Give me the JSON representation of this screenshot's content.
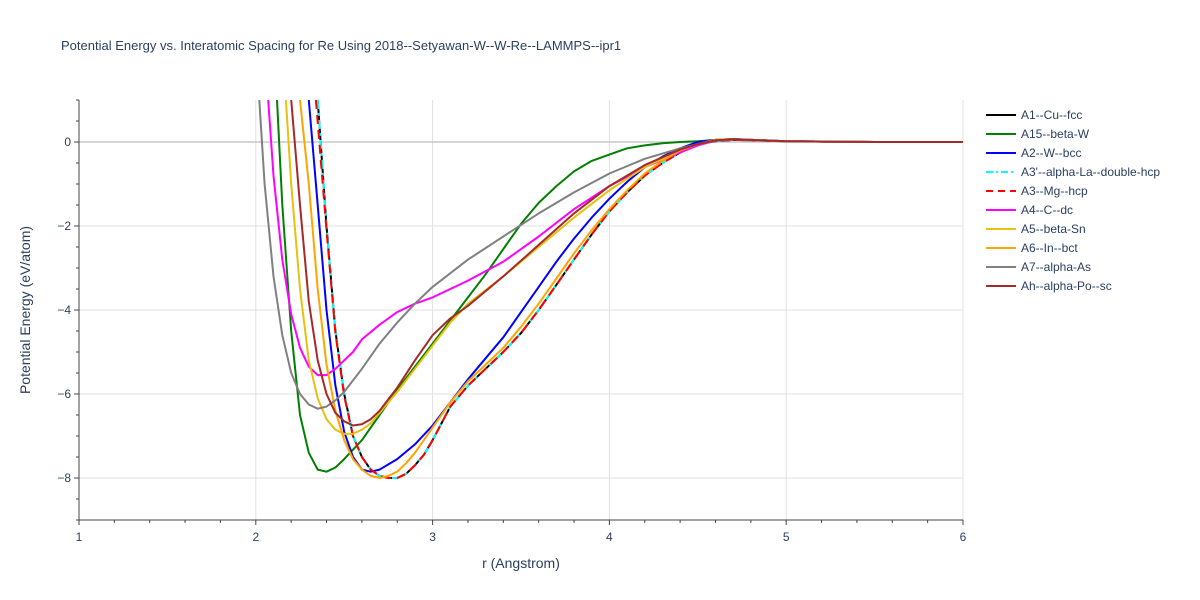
{
  "chart_data": {
    "type": "line",
    "title": "Potential Energy vs. Interatomic Spacing for Re Using 2018--Setyawan-W--W-Re--LAMMPS--ipr1",
    "xlabel": "r (Angstrom)",
    "ylabel": "Potential Energy (eV/atom)",
    "xlim": [
      1,
      6
    ],
    "ylim": [
      -9,
      1
    ],
    "xticks": [
      1,
      2,
      3,
      4,
      5,
      6
    ],
    "yticks": [
      0,
      -2,
      -4,
      -6,
      -8
    ],
    "ytick_labels": [
      "0",
      "−2",
      "−4",
      "−6",
      "−8"
    ],
    "grid": true,
    "legend_position": "right",
    "series": [
      {
        "name": "A1--Cu--fcc",
        "color": "#000000",
        "dash": "solid",
        "x": [
          2.35,
          2.4,
          2.45,
          2.5,
          2.55,
          2.6,
          2.65,
          2.7,
          2.75,
          2.8,
          2.85,
          2.9,
          2.95,
          3.0,
          3.1,
          3.2,
          3.3,
          3.4,
          3.5,
          3.6,
          3.7,
          3.8,
          3.9,
          4.0,
          4.1,
          4.2,
          4.3,
          4.4,
          4.5,
          4.6,
          4.7,
          4.8,
          5.0,
          5.5,
          6.0
        ],
        "y": [
          1.0,
          -2.0,
          -4.5,
          -6.0,
          -7.0,
          -7.5,
          -7.8,
          -7.95,
          -8.0,
          -8.0,
          -7.9,
          -7.7,
          -7.45,
          -7.1,
          -6.3,
          -5.8,
          -5.4,
          -5.0,
          -4.55,
          -4.0,
          -3.4,
          -2.8,
          -2.2,
          -1.65,
          -1.2,
          -0.8,
          -0.5,
          -0.25,
          -0.05,
          0.02,
          0.05,
          0.04,
          0.02,
          0.0,
          0.0
        ]
      },
      {
        "name": "A15--beta-W",
        "color": "#008000",
        "dash": "solid",
        "x": [
          2.12,
          2.15,
          2.2,
          2.25,
          2.3,
          2.35,
          2.4,
          2.45,
          2.5,
          2.6,
          2.7,
          2.8,
          2.9,
          3.0,
          3.1,
          3.2,
          3.3,
          3.4,
          3.5,
          3.6,
          3.7,
          3.8,
          3.9,
          4.0,
          4.1,
          4.2,
          4.3,
          4.4,
          4.5,
          4.6,
          4.7,
          4.8,
          5.0,
          5.5,
          6.0
        ],
        "y": [
          1.0,
          -1.5,
          -4.5,
          -6.5,
          -7.4,
          -7.8,
          -7.85,
          -7.75,
          -7.55,
          -7.1,
          -6.5,
          -5.9,
          -5.35,
          -4.8,
          -4.25,
          -3.7,
          -3.15,
          -2.55,
          -1.95,
          -1.45,
          -1.05,
          -0.7,
          -0.45,
          -0.3,
          -0.15,
          -0.08,
          -0.03,
          0.0,
          0.02,
          0.05,
          0.07,
          0.05,
          0.02,
          0.0,
          0.0
        ]
      },
      {
        "name": "A2--W--bcc",
        "color": "#0000ff",
        "dash": "solid",
        "x": [
          2.3,
          2.35,
          2.4,
          2.45,
          2.5,
          2.55,
          2.6,
          2.65,
          2.7,
          2.8,
          2.9,
          3.0,
          3.1,
          3.2,
          3.3,
          3.4,
          3.5,
          3.6,
          3.7,
          3.8,
          3.9,
          4.0,
          4.1,
          4.2,
          4.3,
          4.4,
          4.5,
          4.6,
          4.7,
          4.8,
          5.0,
          5.5,
          6.0
        ],
        "y": [
          1.0,
          -1.5,
          -4.0,
          -5.8,
          -6.9,
          -7.5,
          -7.8,
          -7.85,
          -7.8,
          -7.55,
          -7.2,
          -6.75,
          -6.2,
          -5.65,
          -5.15,
          -4.65,
          -4.05,
          -3.45,
          -2.85,
          -2.3,
          -1.8,
          -1.35,
          -0.95,
          -0.6,
          -0.35,
          -0.15,
          0.0,
          0.05,
          0.07,
          0.05,
          0.02,
          0.0,
          0.0
        ]
      },
      {
        "name": "A3'--alpha-La--double-hcp",
        "color": "#00ffff",
        "dash": "dashdot",
        "x": [
          2.35,
          2.4,
          2.45,
          2.5,
          2.55,
          2.6,
          2.65,
          2.7,
          2.75,
          2.8,
          2.85,
          2.9,
          2.95,
          3.0,
          3.1,
          3.2,
          3.3,
          3.4,
          3.5,
          3.6,
          3.7,
          3.8,
          3.9,
          4.0,
          4.1,
          4.2,
          4.3,
          4.4,
          4.5,
          4.6,
          4.7,
          4.8,
          5.0,
          5.5,
          6.0
        ],
        "y": [
          1.0,
          -2.0,
          -4.5,
          -6.0,
          -7.0,
          -7.5,
          -7.8,
          -7.95,
          -8.0,
          -8.0,
          -7.9,
          -7.7,
          -7.45,
          -7.1,
          -6.3,
          -5.8,
          -5.4,
          -5.0,
          -4.55,
          -4.0,
          -3.4,
          -2.8,
          -2.2,
          -1.65,
          -1.2,
          -0.8,
          -0.5,
          -0.25,
          -0.05,
          0.02,
          0.05,
          0.04,
          0.02,
          0.0,
          0.0
        ]
      },
      {
        "name": "A3--Mg--hcp",
        "color": "#ff0000",
        "dash": "dash",
        "x": [
          2.34,
          2.4,
          2.45,
          2.5,
          2.55,
          2.6,
          2.65,
          2.7,
          2.75,
          2.8,
          2.85,
          2.9,
          2.95,
          3.0,
          3.1,
          3.2,
          3.3,
          3.4,
          3.5,
          3.6,
          3.7,
          3.8,
          3.9,
          4.0,
          4.1,
          4.2,
          4.3,
          4.4,
          4.5,
          4.6,
          4.7,
          4.8,
          5.0,
          5.5,
          6.0
        ],
        "y": [
          1.0,
          -2.1,
          -4.55,
          -6.05,
          -7.0,
          -7.5,
          -7.8,
          -7.95,
          -8.0,
          -8.0,
          -7.9,
          -7.7,
          -7.45,
          -7.1,
          -6.3,
          -5.8,
          -5.4,
          -5.0,
          -4.55,
          -4.0,
          -3.4,
          -2.8,
          -2.2,
          -1.65,
          -1.2,
          -0.8,
          -0.5,
          -0.25,
          -0.05,
          0.02,
          0.05,
          0.04,
          0.02,
          0.0,
          0.0
        ]
      },
      {
        "name": "A4--C--dc",
        "color": "#ff00ff",
        "dash": "solid",
        "x": [
          2.07,
          2.1,
          2.15,
          2.2,
          2.25,
          2.3,
          2.35,
          2.4,
          2.45,
          2.5,
          2.55,
          2.6,
          2.7,
          2.8,
          2.9,
          3.0,
          3.2,
          3.4,
          3.6,
          3.8,
          4.0,
          4.2,
          4.4,
          4.5,
          4.6,
          4.7,
          4.8,
          5.0,
          5.5,
          6.0
        ],
        "y": [
          1.0,
          -0.8,
          -2.8,
          -4.1,
          -4.9,
          -5.35,
          -5.55,
          -5.55,
          -5.4,
          -5.2,
          -5.0,
          -4.7,
          -4.35,
          -4.05,
          -3.85,
          -3.7,
          -3.3,
          -2.85,
          -2.25,
          -1.6,
          -1.05,
          -0.6,
          -0.25,
          -0.08,
          0.03,
          0.07,
          0.05,
          0.02,
          0.0,
          0.0
        ]
      },
      {
        "name": "A5--beta-Sn",
        "color": "#e6c10f",
        "dash": "solid",
        "x": [
          2.17,
          2.2,
          2.25,
          2.3,
          2.35,
          2.4,
          2.45,
          2.5,
          2.55,
          2.6,
          2.65,
          2.7,
          2.8,
          2.9,
          3.0,
          3.1,
          3.2,
          3.4,
          3.6,
          3.8,
          4.0,
          4.2,
          4.4,
          4.5,
          4.6,
          4.7,
          4.8,
          5.0,
          5.5,
          6.0
        ],
        "y": [
          1.0,
          -1.0,
          -3.5,
          -5.2,
          -6.1,
          -6.6,
          -6.85,
          -6.95,
          -6.95,
          -6.85,
          -6.7,
          -6.45,
          -5.95,
          -5.4,
          -4.85,
          -4.3,
          -3.85,
          -3.2,
          -2.5,
          -1.8,
          -1.15,
          -0.6,
          -0.2,
          -0.05,
          0.05,
          0.07,
          0.05,
          0.02,
          0.0,
          0.0
        ]
      },
      {
        "name": "A6--In--bct",
        "color": "#ffa500",
        "dash": "solid",
        "x": [
          2.25,
          2.3,
          2.35,
          2.4,
          2.45,
          2.5,
          2.55,
          2.6,
          2.65,
          2.7,
          2.75,
          2.8,
          2.85,
          2.9,
          3.0,
          3.1,
          3.2,
          3.3,
          3.4,
          3.5,
          3.6,
          3.7,
          3.8,
          3.9,
          4.0,
          4.1,
          4.2,
          4.3,
          4.4,
          4.5,
          4.6,
          4.7,
          4.8,
          5.0,
          5.5,
          6.0
        ],
        "y": [
          1.0,
          -1.0,
          -3.5,
          -5.3,
          -6.4,
          -7.1,
          -7.55,
          -7.8,
          -7.95,
          -8.0,
          -7.95,
          -7.85,
          -7.65,
          -7.4,
          -6.8,
          -6.2,
          -5.7,
          -5.3,
          -4.9,
          -4.4,
          -3.85,
          -3.25,
          -2.65,
          -2.1,
          -1.6,
          -1.15,
          -0.75,
          -0.45,
          -0.2,
          -0.05,
          0.05,
          0.07,
          0.05,
          0.02,
          0.0,
          0.0
        ]
      },
      {
        "name": "A7--alpha-As",
        "color": "#808080",
        "dash": "solid",
        "x": [
          2.02,
          2.05,
          2.1,
          2.15,
          2.2,
          2.25,
          2.3,
          2.35,
          2.4,
          2.45,
          2.5,
          2.6,
          2.7,
          2.8,
          2.9,
          3.0,
          3.2,
          3.4,
          3.6,
          3.8,
          4.0,
          4.2,
          4.4,
          4.5,
          4.6,
          4.7,
          4.8,
          5.0,
          5.5,
          6.0
        ],
        "y": [
          1.0,
          -1.0,
          -3.2,
          -4.6,
          -5.5,
          -6.0,
          -6.25,
          -6.35,
          -6.3,
          -6.15,
          -5.95,
          -5.4,
          -4.8,
          -4.3,
          -3.85,
          -3.45,
          -2.8,
          -2.25,
          -1.7,
          -1.2,
          -0.75,
          -0.4,
          -0.15,
          -0.05,
          0.03,
          0.06,
          0.05,
          0.02,
          0.0,
          0.0
        ]
      },
      {
        "name": "Ah--alpha-Po--sc",
        "color": "#a52a2a",
        "dash": "solid",
        "x": [
          2.2,
          2.25,
          2.3,
          2.35,
          2.4,
          2.45,
          2.5,
          2.55,
          2.6,
          2.65,
          2.7,
          2.8,
          2.9,
          3.0,
          3.1,
          3.2,
          3.4,
          3.6,
          3.8,
          4.0,
          4.2,
          4.4,
          4.5,
          4.6,
          4.7,
          4.8,
          5.0,
          5.5,
          6.0
        ],
        "y": [
          1.0,
          -1.5,
          -3.8,
          -5.2,
          -6.0,
          -6.45,
          -6.65,
          -6.75,
          -6.72,
          -6.6,
          -6.4,
          -5.85,
          -5.2,
          -4.6,
          -4.2,
          -3.9,
          -3.2,
          -2.45,
          -1.7,
          -1.05,
          -0.55,
          -0.18,
          -0.05,
          0.04,
          0.07,
          0.05,
          0.02,
          0.0,
          0.0
        ]
      }
    ]
  }
}
